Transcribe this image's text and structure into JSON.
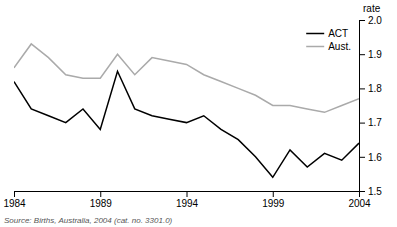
{
  "chart_data": {
    "type": "line",
    "x": [
      1984,
      1985,
      1986,
      1987,
      1988,
      1989,
      1990,
      1991,
      1992,
      1993,
      1994,
      1995,
      1996,
      1997,
      1998,
      1999,
      2000,
      2001,
      2002,
      2003,
      2004
    ],
    "series": [
      {
        "name": "ACT",
        "color": "#000000",
        "values": [
          1.82,
          1.74,
          1.72,
          1.7,
          1.74,
          1.68,
          1.85,
          1.74,
          1.72,
          1.71,
          1.7,
          1.72,
          1.68,
          1.65,
          1.6,
          1.54,
          1.62,
          1.57,
          1.61,
          1.59,
          1.64
        ]
      },
      {
        "name": "Aust.",
        "color": "#aaaaaa",
        "values": [
          1.86,
          1.93,
          1.89,
          1.84,
          1.83,
          1.83,
          1.9,
          1.84,
          1.89,
          1.88,
          1.87,
          1.84,
          1.82,
          1.8,
          1.78,
          1.75,
          1.75,
          1.74,
          1.73,
          1.75,
          1.77
        ]
      }
    ],
    "xlim": [
      1984,
      2004
    ],
    "xticks": [
      1984,
      1989,
      1994,
      1999,
      2004
    ],
    "ylim": [
      1.5,
      2.0
    ],
    "yticks": [
      1.5,
      1.6,
      1.7,
      1.8,
      1.9,
      {
        "value": 2.0,
        "label": "2.0"
      }
    ],
    "ylabel": "rate",
    "annotations": [
      "Source: Births, Australia, 2004 (cat. no. 3301.0)"
    ],
    "legend": "upper right",
    "grid": false
  }
}
